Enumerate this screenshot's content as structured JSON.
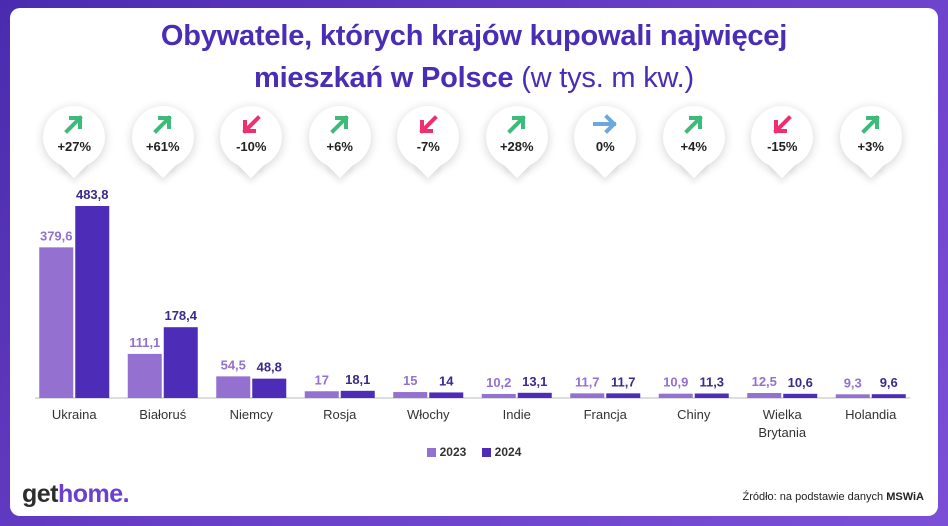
{
  "title_line1": "Obywatele, których krajów kupowali najwięcej",
  "title_line2_bold": "mieszkań w Polsce",
  "title_line2_unit": "(w tys. m kw.)",
  "colors": {
    "series_2023": "#9470d0",
    "series_2024": "#4d2db8",
    "label_2023": "#9470d0",
    "label_2024": "#3a2a8c",
    "up": "#3dbb7a",
    "down": "#f0306e",
    "flat": "#6aa8de"
  },
  "changes": [
    {
      "label": "+27%",
      "direction": "up",
      "icon": "arrow-up-right-icon"
    },
    {
      "label": "+61%",
      "direction": "up",
      "icon": "arrow-up-right-icon"
    },
    {
      "label": "-10%",
      "direction": "down",
      "icon": "arrow-down-left-icon"
    },
    {
      "label": "+6%",
      "direction": "up",
      "icon": "arrow-up-right-icon"
    },
    {
      "label": "-7%",
      "direction": "down",
      "icon": "arrow-down-left-icon"
    },
    {
      "label": "+28%",
      "direction": "up",
      "icon": "arrow-up-right-icon"
    },
    {
      "label": "0%",
      "direction": "flat",
      "icon": "arrow-right-icon"
    },
    {
      "label": "+4%",
      "direction": "up",
      "icon": "arrow-up-right-icon"
    },
    {
      "label": "-15%",
      "direction": "down",
      "icon": "arrow-down-left-icon"
    },
    {
      "label": "+3%",
      "direction": "up",
      "icon": "arrow-up-right-icon"
    }
  ],
  "chart_data": {
    "type": "bar",
    "categories": [
      "Ukraina",
      "Białoruś",
      "Niemcy",
      "Rosja",
      "Włochy",
      "Indie",
      "Francja",
      "Chiny",
      "Wielka Brytania",
      "Holandia"
    ],
    "series": [
      {
        "name": "2023",
        "values": [
          379.6,
          111.1,
          54.5,
          17,
          15,
          10.2,
          11.7,
          10.9,
          12.5,
          9.3
        ],
        "labels": [
          "379,6",
          "111,1",
          "54,5",
          "17",
          "15",
          "10,2",
          "11,7",
          "10,9",
          "12,5",
          "9,3"
        ]
      },
      {
        "name": "2024",
        "values": [
          483.8,
          178.4,
          48.8,
          18.1,
          14,
          13.1,
          11.7,
          11.3,
          10.6,
          9.6
        ],
        "labels": [
          "483,8",
          "178,4",
          "48,8",
          "18,1",
          "14",
          "13,1",
          "11,7",
          "11,3",
          "10,6",
          "9,6"
        ]
      }
    ],
    "ylim": [
      0,
      483.8
    ],
    "grid": false,
    "legend": "bottom-center"
  },
  "footer": {
    "logo_part1": "get",
    "logo_part2": "home.",
    "source_prefix": "Źródło: na podstawie danych ",
    "source_bold": "MSWiA"
  }
}
